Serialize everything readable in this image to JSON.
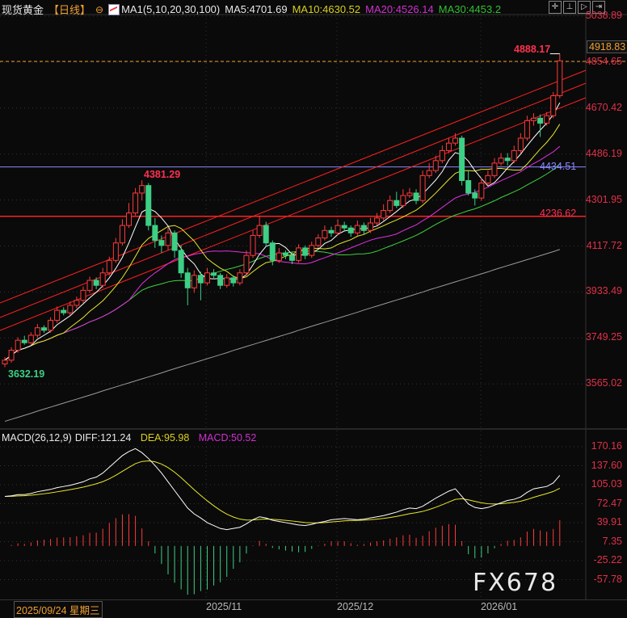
{
  "header": {
    "title": "现货黄金",
    "period": "【日线】",
    "ma_label": "MA1(5,10,20,30,100)",
    "ma5": "MA5:4701.69",
    "ma10": "MA10:4630.52",
    "ma20": "MA20:4526.14",
    "ma30": "MA30:4453.2"
  },
  "toolbar": {
    "icons": [
      "crosshair-icon",
      "zoom-range-icon",
      "play-icon",
      "step-forward-icon"
    ]
  },
  "price_axis": [
    "5038.89",
    "4854.65",
    "4670.42",
    "4486.19",
    "4301.95",
    "4117.72",
    "3933.49",
    "3749.25",
    "3565.02"
  ],
  "price_axis_values": [
    5038.89,
    4854.65,
    4670.42,
    4486.19,
    4301.95,
    4117.72,
    3933.49,
    3749.25,
    3565.02
  ],
  "current_price": "4918.83",
  "annotations": {
    "high_recent": "4888.17",
    "high_oct": "4381.29",
    "low_start": "3632.19",
    "level_blue": "4434.51",
    "level_red": "4236.62"
  },
  "macd_header": {
    "label": "MACD(26,12,9)",
    "diff": "DIFF:121.24",
    "dea": "DEA:95.98",
    "macd": "MACD:50.52"
  },
  "macd_axis": [
    "170.16",
    "137.60",
    "105.03",
    "72.47",
    "39.91",
    "7.35",
    "-25.22",
    "-57.78"
  ],
  "dates": {
    "cursor": "2025/09/24 星期三",
    "m1": "2025/11",
    "m2": "2025/12",
    "m3": "2026/01"
  },
  "watermark": "FX678",
  "colors": {
    "up": "#ff3b3b",
    "down": "#3dcf85",
    "ma5": "#ffffff",
    "ma10": "#e8e82a",
    "ma20": "#e030e0",
    "ma30": "#40d040",
    "ma100": "#9a9a9a",
    "dea": "#e8e82a",
    "diff": "#ffffff"
  },
  "chart_data": {
    "type": "candlestick",
    "ylim": [
      3500,
      5060
    ],
    "horizontal_levels": [
      4434.51,
      4236.62
    ],
    "candles": [
      [
        3645,
        3672,
        3632.19,
        3660
      ],
      [
        3660,
        3712,
        3650,
        3700
      ],
      [
        3700,
        3752,
        3690,
        3740
      ],
      [
        3740,
        3758,
        3722,
        3730
      ],
      [
        3730,
        3772,
        3722,
        3760
      ],
      [
        3760,
        3805,
        3750,
        3790
      ],
      [
        3790,
        3800,
        3770,
        3780
      ],
      [
        3780,
        3832,
        3770,
        3820
      ],
      [
        3820,
        3875,
        3810,
        3860
      ],
      [
        3860,
        3872,
        3840,
        3850
      ],
      [
        3850,
        3895,
        3840,
        3880
      ],
      [
        3880,
        3915,
        3868,
        3900
      ],
      [
        3900,
        3955,
        3890,
        3940
      ],
      [
        3940,
        3995,
        3930,
        3980
      ],
      [
        3980,
        3992,
        3945,
        3960
      ],
      [
        3960,
        4030,
        3950,
        4010
      ],
      [
        4010,
        4075,
        4000,
        4060
      ],
      [
        4060,
        4150,
        4050,
        4130
      ],
      [
        4130,
        4225,
        4120,
        4200
      ],
      [
        4200,
        4290,
        4190,
        4250
      ],
      [
        4250,
        4350,
        4240,
        4330
      ],
      [
        4330,
        4381.29,
        4300,
        4360
      ],
      [
        4360,
        4370,
        4180,
        4200
      ],
      [
        4200,
        4230,
        4110,
        4140
      ],
      [
        4140,
        4160,
        4090,
        4120
      ],
      [
        4120,
        4190,
        4100,
        4170
      ],
      [
        4170,
        4180,
        4070,
        4100
      ],
      [
        4100,
        4120,
        3990,
        4010
      ],
      [
        4010,
        4030,
        3880,
        3950
      ],
      [
        3950,
        4020,
        3930,
        4000
      ],
      [
        4000,
        4015,
        3900,
        3970
      ],
      [
        3970,
        4030,
        3960,
        4010
      ],
      [
        4010,
        4025,
        3985,
        4000
      ],
      [
        4000,
        4010,
        3945,
        3960
      ],
      [
        3960,
        4005,
        3950,
        3990
      ],
      [
        3990,
        4000,
        3955,
        3970
      ],
      [
        3970,
        4025,
        3960,
        4010
      ],
      [
        4010,
        4100,
        4000,
        4080
      ],
      [
        4080,
        4180,
        4070,
        4160
      ],
      [
        4160,
        4240,
        4150,
        4200
      ],
      [
        4200,
        4215,
        4115,
        4130
      ],
      [
        4130,
        4140,
        4040,
        4060
      ],
      [
        4060,
        4110,
        4050,
        4090
      ],
      [
        4090,
        4100,
        4065,
        4080
      ],
      [
        4080,
        4095,
        4045,
        4060
      ],
      [
        4060,
        4125,
        4050,
        4110
      ],
      [
        4110,
        4120,
        4065,
        4080
      ],
      [
        4080,
        4135,
        4070,
        4120
      ],
      [
        4120,
        4165,
        4110,
        4150
      ],
      [
        4150,
        4200,
        4140,
        4180
      ],
      [
        4180,
        4195,
        4155,
        4170
      ],
      [
        4170,
        4225,
        4160,
        4200
      ],
      [
        4200,
        4215,
        4175,
        4190
      ],
      [
        4190,
        4200,
        4155,
        4170
      ],
      [
        4170,
        4220,
        4160,
        4200
      ],
      [
        4200,
        4212,
        4165,
        4180
      ],
      [
        4180,
        4230,
        4170,
        4210
      ],
      [
        4210,
        4250,
        4200,
        4230
      ],
      [
        4230,
        4285,
        4220,
        4260
      ],
      [
        4260,
        4320,
        4250,
        4300
      ],
      [
        4300,
        4335,
        4270,
        4280
      ],
      [
        4280,
        4345,
        4270,
        4320
      ],
      [
        4320,
        4350,
        4310,
        4330
      ],
      [
        4330,
        4345,
        4285,
        4300
      ],
      [
        4300,
        4420,
        4290,
        4400
      ],
      [
        4400,
        4450,
        4390,
        4420
      ],
      [
        4420,
        4480,
        4410,
        4460
      ],
      [
        4460,
        4520,
        4450,
        4500
      ],
      [
        4500,
        4550,
        4490,
        4530
      ],
      [
        4530,
        4570,
        4520,
        4550
      ],
      [
        4550,
        4560,
        4360,
        4380
      ],
      [
        4380,
        4420,
        4320,
        4330
      ],
      [
        4330,
        4345,
        4280,
        4310
      ],
      [
        4310,
        4390,
        4300,
        4370
      ],
      [
        4370,
        4420,
        4360,
        4400
      ],
      [
        4400,
        4470,
        4390,
        4450
      ],
      [
        4450,
        4490,
        4440,
        4470
      ],
      [
        4470,
        4490,
        4440,
        4460
      ],
      [
        4460,
        4520,
        4450,
        4500
      ],
      [
        4500,
        4570,
        4490,
        4550
      ],
      [
        4550,
        4640,
        4540,
        4620
      ],
      [
        4620,
        4650,
        4600,
        4630
      ],
      [
        4630,
        4645,
        4555,
        4610
      ],
      [
        4610,
        4655,
        4600,
        4640
      ],
      [
        4640,
        4735,
        4630,
        4720
      ],
      [
        4720,
        4888.17,
        4710,
        4860
      ]
    ],
    "ma100": [
      3415,
      3423,
      3431,
      3439,
      3447,
      3456,
      3464,
      3472,
      3480,
      3488,
      3496,
      3504,
      3512,
      3520,
      3528,
      3537,
      3545,
      3553,
      3561,
      3569,
      3577,
      3585,
      3593,
      3601,
      3609,
      3618,
      3626,
      3634,
      3642,
      3650,
      3658,
      3666,
      3674,
      3682,
      3690,
      3699,
      3707,
      3715,
      3723,
      3731,
      3739,
      3747,
      3755,
      3763,
      3771,
      3780,
      3788,
      3796,
      3804,
      3812,
      3820,
      3828,
      3836,
      3844,
      3852,
      3861,
      3869,
      3877,
      3885,
      3893,
      3901,
      3909,
      3917,
      3925,
      3933,
      3942,
      3950,
      3958,
      3966,
      3974,
      3982,
      3990,
      3998,
      4006,
      4014,
      4023,
      4031,
      4039,
      4047,
      4055,
      4063,
      4071,
      4079,
      4087,
      4095,
      4104
    ],
    "macd_ylim": [
      -57.78,
      170.16
    ],
    "diff": [
      85,
      86,
      88,
      88,
      90,
      93,
      95,
      97,
      100,
      102,
      104,
      107,
      110,
      115,
      118,
      125,
      135,
      145,
      155,
      162,
      167,
      160,
      150,
      138,
      125,
      110,
      95,
      80,
      65,
      55,
      48,
      40,
      35,
      30,
      28,
      30,
      32,
      38,
      45,
      50,
      48,
      44,
      42,
      40,
      38,
      36,
      35,
      37,
      40,
      42,
      45,
      46,
      47,
      46,
      45,
      46,
      48,
      50,
      52,
      55,
      58,
      62,
      65,
      64,
      68,
      75,
      82,
      88,
      94,
      98,
      85,
      72,
      66,
      64,
      66,
      70,
      74,
      78,
      80,
      84,
      92,
      98,
      100,
      102,
      108,
      121
    ]
  }
}
